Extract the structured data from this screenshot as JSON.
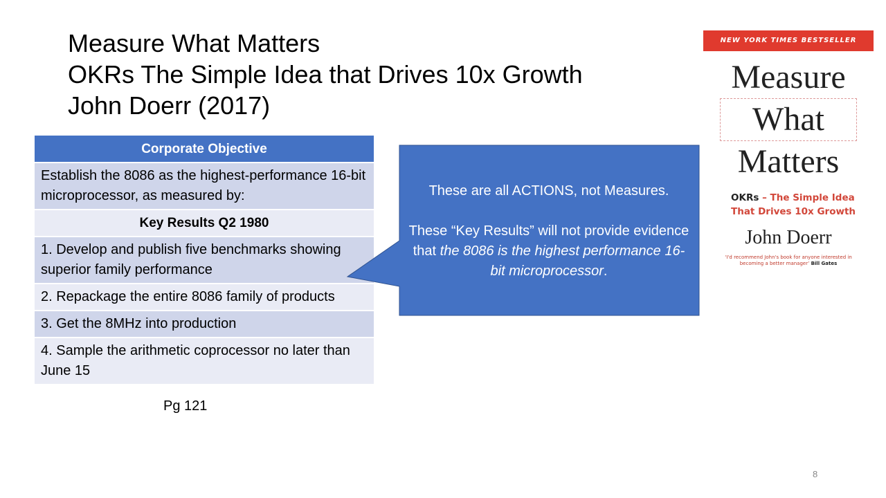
{
  "slide": {
    "title_lines": [
      "Measure What Matters",
      "OKRs The Simple Idea that Drives 10x Growth",
      "John Doerr (2017)"
    ],
    "table": {
      "header": "Corporate Objective",
      "objective": "Establish the 8086 as the highest-performance 16-bit microprocessor, as measured by:",
      "subheader": "Key Results Q2 1980",
      "rows": [
        "1. Develop and publish five benchmarks showing superior family performance",
        "2. Repackage the entire 8086 family of products",
        "3. Get the 8MHz into production",
        "4. Sample the arithmetic coprocessor no later than June 15"
      ],
      "source": "Pg 121"
    },
    "callout": {
      "line1": "These are all ACTIONS, not Measures.",
      "line2_plain": "These “Key Results” will not provide evidence that ",
      "line2_italic": "the 8086 is the highest performance 16-bit microprocessor",
      "line2_end": "."
    },
    "book_cover": {
      "banner": "NEW YORK TIMES BESTSELLER",
      "title_words": [
        "Measure",
        "What",
        "Matters"
      ],
      "subtitle_bold": "OKRs",
      "subtitle_rest": "– The Simple Idea That Drives 10x Growth",
      "author": "John Doerr",
      "quote": "‘I'd recommend John's book for anyone interested in becoming a better manager’",
      "quote_by": "Bill Gates"
    },
    "slide_number": "8"
  }
}
